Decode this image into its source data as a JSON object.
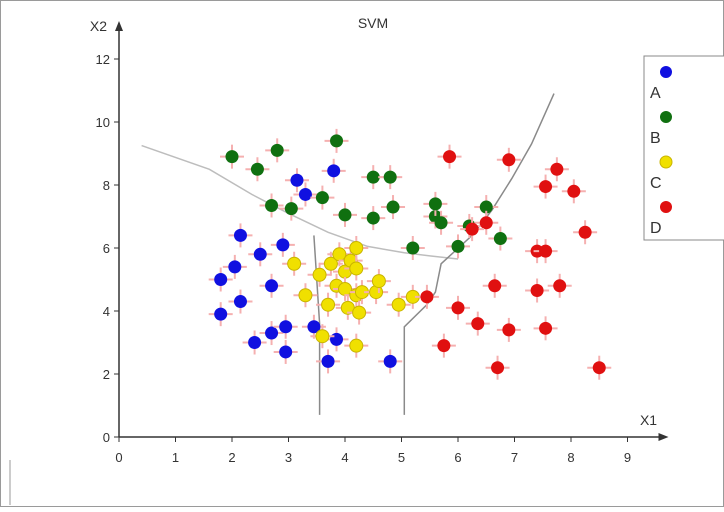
{
  "chart_data": {
    "type": "scatter",
    "title": "SVM",
    "xlabel": "X1",
    "ylabel": "X2",
    "xlim": [
      0,
      9
    ],
    "ylim": [
      0,
      12
    ],
    "x_ticks": [
      "0",
      "1",
      "2",
      "3",
      "4",
      "5",
      "6",
      "7",
      "8",
      "9"
    ],
    "y_ticks": [
      "0",
      "2",
      "4",
      "6",
      "8",
      "10",
      "12"
    ],
    "grid": false,
    "legend_position": "top-right",
    "series": [
      {
        "name": "A",
        "color": "#1010e0",
        "points": [
          [
            1.8,
            3.9
          ],
          [
            1.8,
            5.0
          ],
          [
            2.05,
            5.4
          ],
          [
            2.15,
            4.3
          ],
          [
            2.15,
            6.4
          ],
          [
            2.4,
            3.0
          ],
          [
            2.5,
            5.8
          ],
          [
            2.7,
            3.3
          ],
          [
            2.7,
            4.8
          ],
          [
            2.9,
            6.1
          ],
          [
            2.95,
            2.7
          ],
          [
            2.95,
            3.5
          ],
          [
            3.15,
            8.15
          ],
          [
            3.3,
            7.7
          ],
          [
            3.45,
            3.5
          ],
          [
            3.7,
            2.4
          ],
          [
            3.8,
            8.45
          ],
          [
            3.85,
            3.1
          ],
          [
            4.8,
            2.4
          ]
        ]
      },
      {
        "name": "B",
        "color": "#107010",
        "points": [
          [
            2.0,
            8.9
          ],
          [
            2.45,
            8.5
          ],
          [
            2.7,
            7.35
          ],
          [
            2.8,
            9.1
          ],
          [
            3.05,
            7.25
          ],
          [
            3.6,
            7.6
          ],
          [
            3.85,
            9.4
          ],
          [
            4.0,
            7.05
          ],
          [
            4.5,
            8.25
          ],
          [
            4.5,
            6.95
          ],
          [
            4.8,
            8.25
          ],
          [
            4.85,
            7.3
          ],
          [
            5.2,
            6.0
          ],
          [
            5.6,
            7.0
          ],
          [
            5.6,
            7.4
          ],
          [
            5.7,
            6.8
          ],
          [
            6.0,
            6.05
          ],
          [
            6.2,
            6.7
          ],
          [
            6.5,
            7.3
          ],
          [
            6.75,
            6.3
          ]
        ]
      },
      {
        "name": "C",
        "color": "#f0e000",
        "points": [
          [
            3.1,
            5.5
          ],
          [
            3.3,
            4.5
          ],
          [
            3.55,
            5.15
          ],
          [
            3.6,
            3.2
          ],
          [
            3.7,
            4.2
          ],
          [
            3.75,
            5.5
          ],
          [
            3.85,
            4.8
          ],
          [
            3.9,
            5.8
          ],
          [
            4.0,
            5.25
          ],
          [
            4.0,
            4.7
          ],
          [
            4.05,
            4.1
          ],
          [
            4.1,
            5.6
          ],
          [
            4.2,
            5.35
          ],
          [
            4.2,
            6.0
          ],
          [
            4.2,
            4.5
          ],
          [
            4.25,
            3.95
          ],
          [
            4.2,
            2.9
          ],
          [
            4.3,
            4.6
          ],
          [
            4.55,
            4.6
          ],
          [
            4.6,
            4.95
          ],
          [
            4.95,
            4.2
          ],
          [
            5.2,
            4.45
          ]
        ]
      },
      {
        "name": "D",
        "color": "#e01010",
        "points": [
          [
            5.85,
            8.9
          ],
          [
            6.9,
            8.8
          ],
          [
            7.55,
            7.95
          ],
          [
            7.75,
            8.5
          ],
          [
            8.05,
            7.8
          ],
          [
            6.5,
            6.8
          ],
          [
            6.25,
            6.6
          ],
          [
            7.4,
            5.9
          ],
          [
            7.55,
            5.9
          ],
          [
            8.25,
            6.5
          ],
          [
            5.45,
            4.45
          ],
          [
            6.0,
            4.1
          ],
          [
            6.65,
            4.8
          ],
          [
            7.4,
            4.65
          ],
          [
            7.8,
            4.8
          ],
          [
            6.35,
            3.6
          ],
          [
            6.9,
            3.4
          ],
          [
            7.55,
            3.45
          ],
          [
            5.75,
            2.9
          ],
          [
            6.7,
            2.2
          ],
          [
            8.5,
            2.2
          ]
        ]
      }
    ],
    "boundaries": [
      {
        "points": [
          [
            0.4,
            9.25
          ],
          [
            1.6,
            8.5
          ],
          [
            2.35,
            7.7
          ],
          [
            3.0,
            7.1
          ],
          [
            3.7,
            6.5
          ],
          [
            4.4,
            6.05
          ],
          [
            5.05,
            5.85
          ],
          [
            5.5,
            5.75
          ],
          [
            6.0,
            5.65
          ]
        ]
      },
      {
        "points": [
          [
            3.55,
            0.7
          ],
          [
            3.55,
            3.6
          ],
          [
            3.45,
            6.4
          ]
        ]
      },
      {
        "points": [
          [
            5.05,
            0.7
          ],
          [
            5.05,
            3.5
          ],
          [
            5.45,
            4.2
          ],
          [
            5.6,
            4.6
          ],
          [
            5.7,
            5.5
          ],
          [
            6.25,
            6.4
          ],
          [
            6.6,
            7.2
          ],
          [
            6.95,
            8.2
          ],
          [
            7.3,
            9.3
          ],
          [
            7.7,
            10.9
          ]
        ]
      }
    ]
  }
}
